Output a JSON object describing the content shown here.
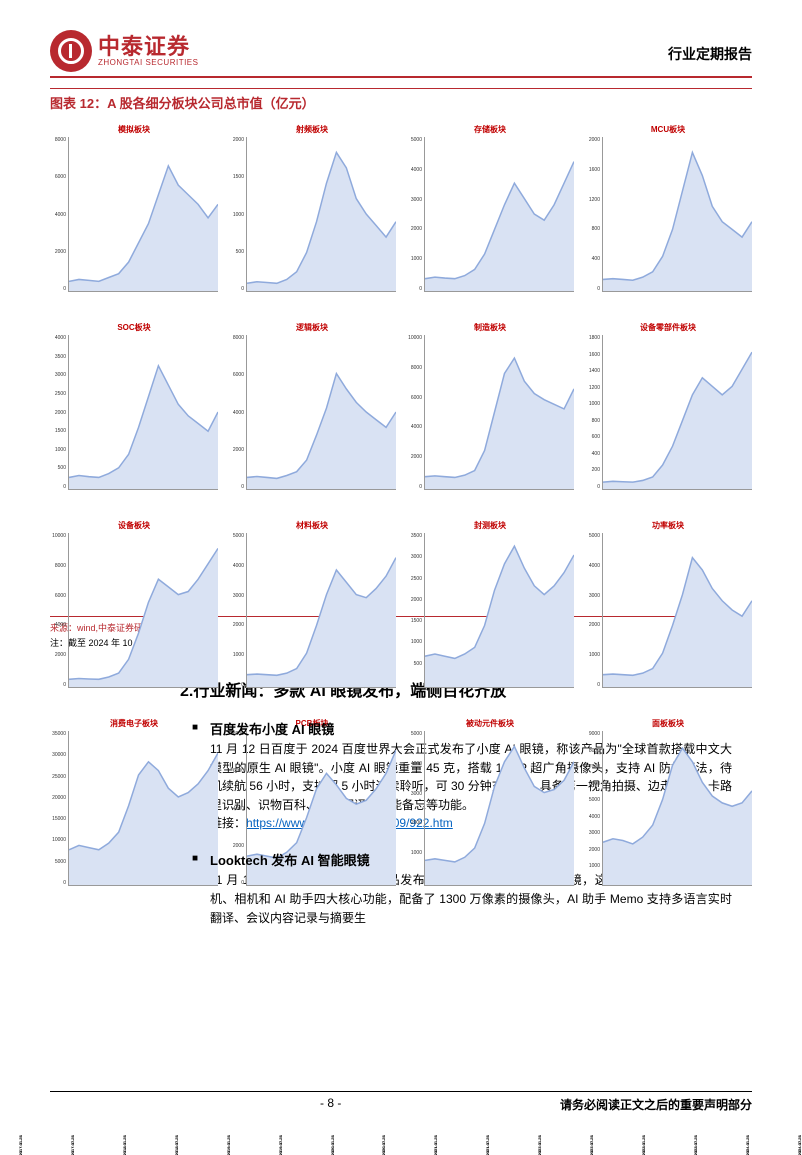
{
  "header": {
    "logo_cn": "中泰证券",
    "logo_en": "ZHONGTAI SECURITIES",
    "report_type": "行业定期报告"
  },
  "figure": {
    "title": "图表 12：A 股各细分板块公司总市值（亿元）",
    "source": "来源：wind,中泰证券研究所",
    "note": "注：截至 2024 年 10 月 25 日",
    "x_labels": [
      "2017-01-31",
      "2017-07-31",
      "2018-01-31",
      "2018-07-31",
      "2019-01-31",
      "2019-07-31",
      "2020-01-31",
      "2020-07-31",
      "2021-01-31",
      "2021-07-31",
      "2022-01-31",
      "2022-07-31",
      "2023-01-31",
      "2023-07-31",
      "2024-01-31",
      "2024-07-31"
    ],
    "chart_colors": {
      "line": "#8faadc",
      "fill": "#d9e2f3",
      "title": "#c00000",
      "axis": "#333333"
    },
    "charts": [
      {
        "title": "模拟板块",
        "ymax": 8000,
        "ystep": 2000,
        "data": [
          500,
          600,
          550,
          500,
          700,
          900,
          1500,
          2500,
          3500,
          5000,
          6500,
          5500,
          5000,
          4500,
          3800,
          4500
        ]
      },
      {
        "title": "射频板块",
        "ymax": 2000,
        "ystep": 500,
        "data": [
          100,
          120,
          110,
          100,
          150,
          250,
          500,
          900,
          1400,
          1800,
          1600,
          1200,
          1000,
          850,
          700,
          900
        ]
      },
      {
        "title": "存储板块",
        "ymax": 5000,
        "ystep": 1000,
        "data": [
          400,
          450,
          420,
          400,
          500,
          700,
          1200,
          2000,
          2800,
          3500,
          3000,
          2500,
          2300,
          2800,
          3500,
          4200
        ]
      },
      {
        "title": "MCU板块",
        "ymax": 2000,
        "ystep": 400,
        "data": [
          150,
          160,
          150,
          140,
          180,
          250,
          450,
          800,
          1300,
          1800,
          1500,
          1100,
          900,
          800,
          700,
          900
        ]
      },
      {
        "title": "SOC板块",
        "ymax": 4000,
        "ystep": 500,
        "data": [
          300,
          350,
          320,
          300,
          400,
          550,
          900,
          1600,
          2400,
          3200,
          2700,
          2200,
          1900,
          1700,
          1500,
          2000
        ]
      },
      {
        "title": "逻辑板块",
        "ymax": 8000,
        "ystep": 2000,
        "data": [
          600,
          650,
          600,
          550,
          700,
          900,
          1500,
          2800,
          4200,
          6000,
          5200,
          4500,
          4000,
          3600,
          3200,
          4000
        ]
      },
      {
        "title": "制造板块",
        "ymax": 10000,
        "ystep": 2000,
        "data": [
          800,
          850,
          800,
          750,
          900,
          1200,
          2500,
          5000,
          7500,
          8500,
          7000,
          6200,
          5800,
          5500,
          5200,
          6500
        ]
      },
      {
        "title": "设备零部件板块",
        "ymax": 1800,
        "ystep": 200,
        "data": [
          80,
          90,
          85,
          80,
          100,
          140,
          280,
          500,
          800,
          1100,
          1300,
          1200,
          1100,
          1200,
          1400,
          1600
        ]
      },
      {
        "title": "设备板块",
        "ymax": 10000,
        "ystep": 2000,
        "data": [
          500,
          550,
          520,
          500,
          650,
          900,
          1800,
          3500,
          5500,
          7000,
          6500,
          6000,
          6200,
          7000,
          8000,
          9000
        ]
      },
      {
        "title": "材料板块",
        "ymax": 5000,
        "ystep": 1000,
        "data": [
          400,
          420,
          400,
          380,
          450,
          600,
          1100,
          2000,
          3000,
          3800,
          3400,
          3000,
          2900,
          3200,
          3600,
          4200
        ]
      },
      {
        "title": "封测板块",
        "ymax": 3500,
        "ystep": 500,
        "data": [
          700,
          750,
          700,
          650,
          750,
          900,
          1400,
          2200,
          2800,
          3200,
          2700,
          2300,
          2100,
          2300,
          2600,
          3000
        ]
      },
      {
        "title": "功率板块",
        "ymax": 5000,
        "ystep": 1000,
        "data": [
          400,
          420,
          400,
          380,
          450,
          600,
          1100,
          2000,
          3000,
          4200,
          3800,
          3200,
          2800,
          2500,
          2300,
          2800
        ]
      },
      {
        "title": "消费电子板块",
        "ymax": 35000,
        "ystep": 5000,
        "data": [
          8000,
          9000,
          8500,
          8000,
          9500,
          12000,
          18000,
          25000,
          28000,
          26000,
          22000,
          20000,
          21000,
          23000,
          26000,
          30000
        ]
      },
      {
        "title": "PCB板块",
        "ymax": 8000,
        "ystep": 2000,
        "data": [
          1500,
          1600,
          1500,
          1400,
          1700,
          2200,
          3500,
          5000,
          5800,
          5200,
          4500,
          4200,
          4400,
          5000,
          5800,
          7000
        ]
      },
      {
        "title": "被动元件板块",
        "ymax": 5000,
        "ystep": 1000,
        "data": [
          800,
          850,
          800,
          750,
          900,
          1200,
          2000,
          3200,
          4000,
          4500,
          3800,
          3200,
          3000,
          3100,
          3400,
          4000
        ]
      },
      {
        "title": "面板板块",
        "ymax": 9000,
        "ystep": 1000,
        "data": [
          2500,
          2700,
          2600,
          2400,
          2800,
          3500,
          5000,
          7000,
          8000,
          7200,
          6000,
          5200,
          4800,
          4600,
          4800,
          5500
        ]
      }
    ]
  },
  "section": {
    "heading": "2.行业新闻：多款 AI 眼镜发布，端侧百花齐放"
  },
  "news": [
    {
      "title": "百度发布小度 AI 眼镜",
      "body": "11 月 12 日百度于 2024 百度世界大会正式发布了小度 AI 眼镜，称该产品为\"全球首款搭载中文大模型的原生 AI 眼镜\"。小度 AI 眼镜重量 45 克，搭载 16MP 超广角摄像头，支持 AI 防抖算法，待机续航 56 小时，支持超 5 小时连续聆听，可 30 分钟充满电，具备第一视角拍摄、边走边问、卡路里识别、识物百科、视听翻译、智能备忘等功能。",
      "link_label": "链接：",
      "link_url": "https://www.ithome.com/0/809/922.htm"
    },
    {
      "title": "Looktech 发布 AI 智能眼镜",
      "body": "11 月 16 日，Looktech 举办了新品发布会，正式发布其 AI 智能眼镜，这款产品集成了眼镜、耳机、相机和 AI 助手四大核心功能，配备了 1300 万像素的摄像头，AI 助手 Memo 支持多语言实时翻译、会议内容记录与摘要生",
      "link_label": "",
      "link_url": ""
    }
  ],
  "footer": {
    "page": "- 8 -",
    "disclaimer": "请务必阅读正文之后的重要声明部分"
  }
}
